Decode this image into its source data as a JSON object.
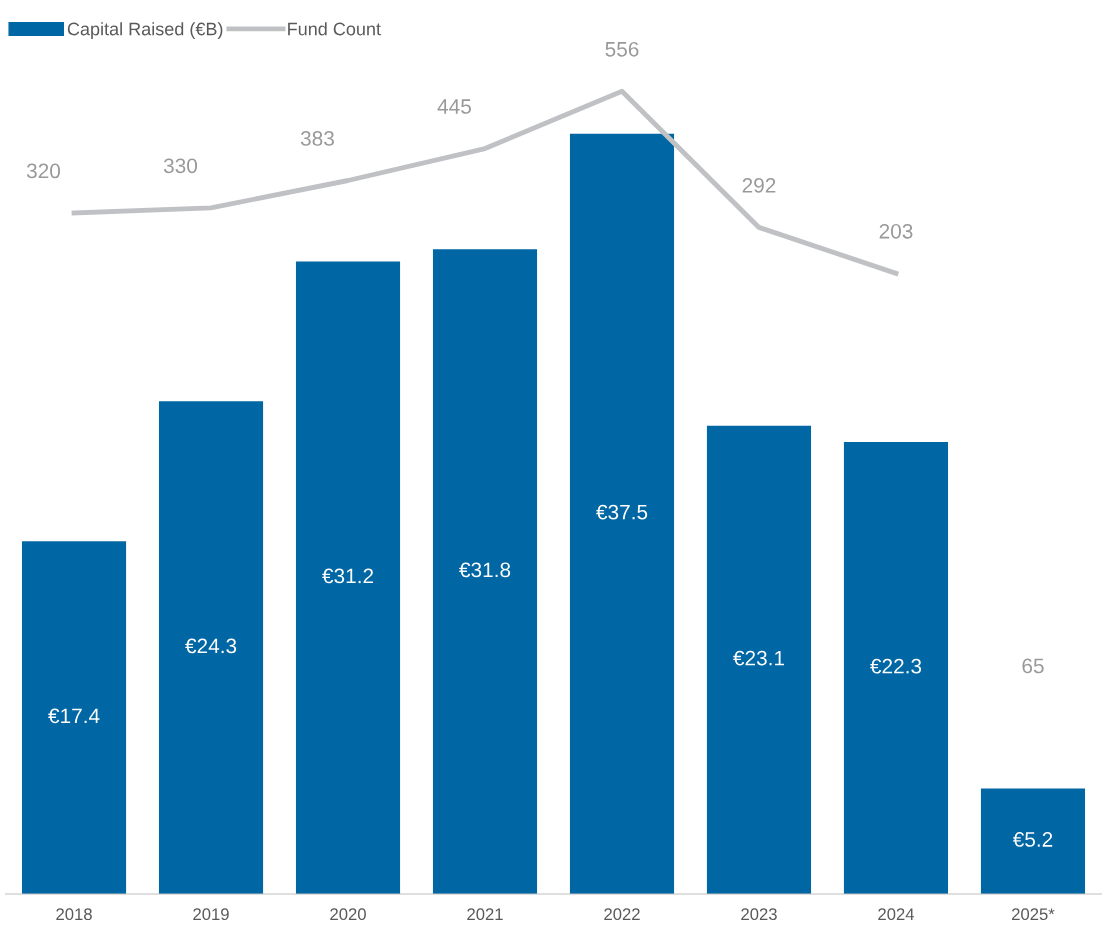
{
  "chart_data": {
    "type": "bar",
    "categories": [
      "2018",
      "2019",
      "2020",
      "2021",
      "2022",
      "2023",
      "2024",
      "2025*"
    ],
    "series": [
      {
        "name": "Capital Raised (€B)",
        "color": "#0066a4",
        "values": [
          17.4,
          24.3,
          31.2,
          31.8,
          37.5,
          23.1,
          22.3,
          5.2
        ],
        "value_labels": [
          "€17.4",
          "€24.3",
          "€31.2",
          "€31.8",
          "€37.5",
          "€23.1",
          "€22.3",
          "€5.2"
        ]
      },
      {
        "name": "Fund Count",
        "type": "line",
        "axis": "y2",
        "color": "#bfc1c4",
        "values": [
          320,
          330,
          383,
          445,
          556,
          292,
          203,
          null
        ],
        "value_labels": [
          "320",
          "330",
          "383",
          "445",
          "556",
          "292",
          "203",
          "65"
        ]
      }
    ],
    "tick_labels": "x",
    "legend": "top left",
    "grid": false
  }
}
